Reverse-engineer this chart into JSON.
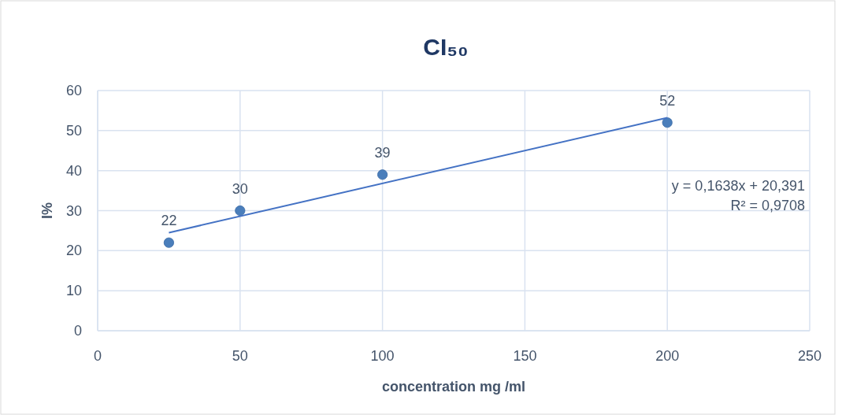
{
  "chart_data": {
    "type": "scatter",
    "title": "CI₅₀",
    "xlabel": "concentration mg /ml",
    "ylabel": "I%",
    "series": [
      {
        "color": "#4a7ebb",
        "x": [
          25,
          50,
          100,
          200
        ],
        "values": [
          22,
          30,
          39,
          52
        ],
        "value_labels": [
          "22",
          "30",
          "39",
          "52"
        ],
        "marker": "circle"
      },
      {
        "type": "line",
        "color": "#4472c4",
        "x": [
          25,
          200
        ],
        "values": [
          24.5,
          53.2
        ],
        "marker": "none"
      }
    ],
    "xlim": [
      0,
      250
    ],
    "xticks": [
      0,
      50,
      100,
      150,
      200,
      250
    ],
    "ylim": [
      0,
      60
    ],
    "yticks": [
      0,
      10,
      20,
      30,
      40,
      50,
      60
    ],
    "grid": true,
    "annotations": [
      "y = 0,1638x + 20,391",
      "R² = 0,9708"
    ]
  }
}
